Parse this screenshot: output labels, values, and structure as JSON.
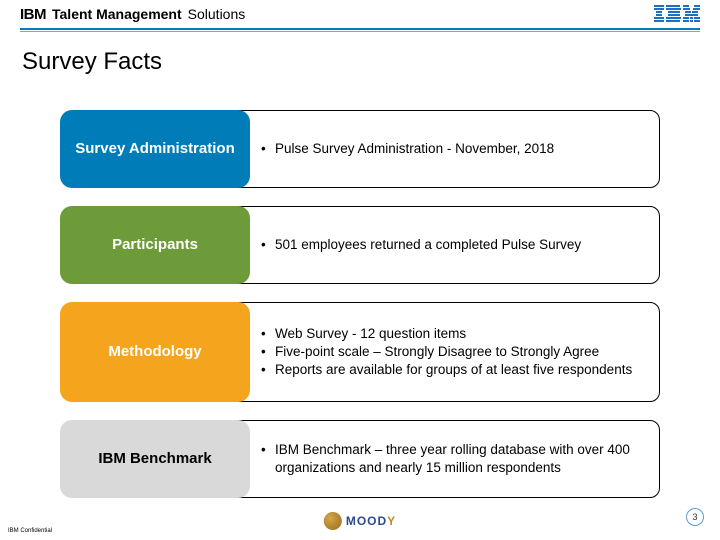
{
  "header": {
    "brand_prefix": "IBM",
    "brand_bold": "Talent Management",
    "brand_light": "Solutions"
  },
  "title": "Survey Facts",
  "rows": [
    {
      "label": "Survey Administration",
      "label_color": "#007db8",
      "tall": false,
      "bullets": [
        "Pulse Survey Administration - November, 2018"
      ]
    },
    {
      "label": "Participants",
      "label_color": "#6e9b3a",
      "tall": false,
      "bullets": [
        "501 employees returned a completed Pulse Survey"
      ]
    },
    {
      "label": "Methodology",
      "label_color": "#f5a51d",
      "tall": true,
      "bullets": [
        "Web Survey - 12 question items",
        "Five-point scale – Strongly Disagree to Strongly  Agree",
        "Reports are available for groups of at least five respondents"
      ]
    },
    {
      "label": "IBM Benchmark",
      "label_color": "#d9d9d9",
      "tall": false,
      "bullets": [
        "IBM Benchmark – three year rolling database with over 400 organizations and nearly 15 million respondents"
      ]
    }
  ],
  "label_text_dark": "#000000",
  "label_text_light": "#ffffff",
  "moody": {
    "name": "MOODY",
    "color_word": "#2a4b8d",
    "color_last": "#c28a2a"
  },
  "confidential": "IBM Confidential",
  "page_number": "3",
  "colors": {
    "accent": "#007db8",
    "page_badge_border": "#5b9bd5"
  }
}
